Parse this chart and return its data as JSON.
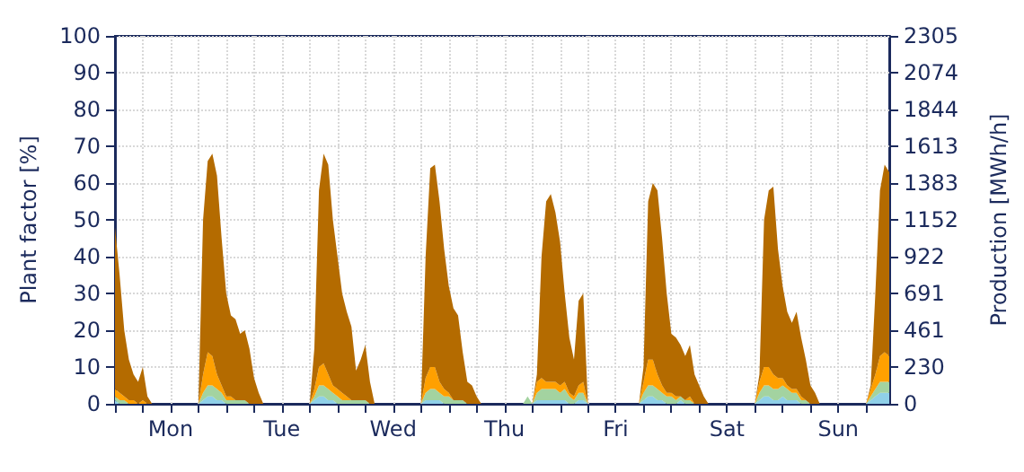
{
  "chart_data": {
    "type": "area",
    "stacked": true,
    "ylabel": "Plant factor [%]",
    "y2label": "Production [MWh/h]",
    "categories": [
      null,
      null,
      null,
      null,
      null,
      null,
      null,
      null,
      null,
      null,
      null,
      null,
      "Mon",
      null,
      null,
      null,
      null,
      null,
      null,
      null,
      null,
      null,
      null,
      null,
      null,
      null,
      null,
      null,
      null,
      null,
      null,
      null,
      null,
      null,
      null,
      null,
      "Tue",
      null,
      null,
      null,
      null,
      null,
      null,
      null,
      null,
      null,
      null,
      null,
      null,
      null,
      null,
      null,
      null,
      null,
      null,
      null,
      null,
      null,
      null,
      null,
      "Wed",
      null,
      null,
      null,
      null,
      null,
      null,
      null,
      null,
      null,
      null,
      null,
      null,
      null,
      null,
      null,
      null,
      null,
      null,
      null,
      null,
      null,
      null,
      null,
      "Thu",
      null,
      null,
      null,
      null,
      null,
      null,
      null,
      null,
      null,
      null,
      null,
      null,
      null,
      null,
      null,
      null,
      null,
      null,
      null,
      null,
      null,
      null,
      null,
      "Fri",
      null,
      null,
      null,
      null,
      null,
      null,
      null,
      null,
      null,
      null,
      null,
      null,
      null,
      null,
      null,
      null,
      null,
      null,
      null,
      null,
      null,
      null,
      null,
      "Sat",
      null,
      null,
      null,
      null,
      null,
      null,
      null,
      null,
      null,
      null,
      null,
      null,
      null,
      null,
      null,
      null,
      null,
      null,
      null,
      null,
      null,
      null,
      null,
      "Sun",
      null,
      null,
      null,
      null,
      null,
      null,
      null,
      null,
      null,
      null,
      null
    ],
    "ylim": [
      0,
      100
    ],
    "yticks": [
      0,
      10,
      20,
      30,
      40,
      50,
      60,
      70,
      80,
      90,
      100
    ],
    "y2lim": [
      0,
      2305
    ],
    "y2ticks": [
      0,
      230,
      461,
      691,
      922,
      1152,
      1383,
      1613,
      1844,
      2074,
      2305
    ],
    "grid": true,
    "series": [
      {
        "color": "#8fd0e8",
        "values": [
          1,
          0,
          0,
          0,
          0,
          0,
          0,
          0,
          0,
          0,
          0,
          0,
          0,
          0,
          0,
          0,
          0,
          0,
          0,
          1,
          2,
          2,
          1,
          1,
          0,
          0,
          0,
          0,
          0,
          0,
          0,
          0,
          0,
          0,
          0,
          0,
          0,
          0,
          0,
          0,
          0,
          0,
          0,
          1,
          2,
          2,
          1,
          1,
          0,
          0,
          0,
          0,
          0,
          0,
          0,
          0,
          0,
          0,
          0,
          0,
          0,
          0,
          0,
          0,
          0,
          0,
          0,
          1,
          1,
          1,
          1,
          0,
          0,
          0,
          0,
          0,
          0,
          0,
          0,
          0,
          0,
          0,
          0,
          0,
          0,
          0,
          0,
          0,
          0,
          0,
          0,
          1,
          1,
          1,
          1,
          1,
          1,
          1,
          0,
          0,
          1,
          1,
          0,
          0,
          0,
          0,
          0,
          0,
          0,
          0,
          0,
          0,
          0,
          0,
          1,
          2,
          2,
          1,
          1,
          0,
          0,
          0,
          1,
          0,
          0,
          0,
          0,
          0,
          0,
          0,
          0,
          0,
          0,
          0,
          0,
          0,
          0,
          0,
          0,
          1,
          2,
          2,
          1,
          1,
          2,
          1,
          1,
          1,
          0,
          0,
          0,
          0,
          0,
          0,
          0,
          0,
          0,
          0,
          0,
          0,
          0,
          0,
          0,
          1,
          2,
          3,
          3,
          3
        ]
      },
      {
        "color": "#a3d3a0",
        "values": [
          1,
          1,
          1,
          0,
          0,
          0,
          0,
          0,
          0,
          0,
          0,
          0,
          0,
          0,
          0,
          0,
          0,
          0,
          0,
          2,
          3,
          3,
          3,
          2,
          1,
          1,
          1,
          1,
          1,
          0,
          0,
          0,
          0,
          0,
          0,
          0,
          0,
          0,
          0,
          0,
          0,
          0,
          0,
          1,
          3,
          3,
          3,
          2,
          2,
          1,
          1,
          1,
          1,
          1,
          1,
          0,
          0,
          0,
          0,
          0,
          0,
          0,
          0,
          0,
          0,
          0,
          0,
          2,
          3,
          3,
          2,
          2,
          2,
          1,
          1,
          1,
          0,
          0,
          0,
          0,
          0,
          0,
          0,
          0,
          0,
          0,
          0,
          0,
          0,
          2,
          0,
          2,
          3,
          3,
          3,
          3,
          2,
          3,
          2,
          1,
          2,
          2,
          0,
          0,
          0,
          0,
          0,
          0,
          0,
          0,
          0,
          0,
          0,
          0,
          2,
          3,
          3,
          3,
          2,
          2,
          2,
          1,
          1,
          1,
          1,
          0,
          0,
          0,
          0,
          0,
          0,
          0,
          0,
          0,
          0,
          0,
          0,
          0,
          0,
          2,
          3,
          3,
          3,
          3,
          3,
          3,
          2,
          2,
          1,
          1,
          0,
          0,
          0,
          0,
          0,
          0,
          0,
          0,
          0,
          0,
          0,
          0,
          0,
          1,
          2,
          3,
          3,
          3
        ]
      },
      {
        "color": "#ffa000",
        "values": [
          2,
          2,
          1,
          1,
          1,
          0,
          1,
          0,
          0,
          0,
          0,
          0,
          0,
          0,
          0,
          0,
          0,
          0,
          0,
          5,
          9,
          8,
          4,
          2,
          1,
          1,
          0,
          0,
          0,
          0,
          0,
          0,
          0,
          0,
          0,
          0,
          0,
          0,
          0,
          0,
          0,
          0,
          0,
          2,
          5,
          6,
          4,
          2,
          2,
          2,
          1,
          0,
          0,
          0,
          0,
          0,
          0,
          0,
          0,
          0,
          0,
          0,
          0,
          0,
          0,
          0,
          0,
          4,
          6,
          6,
          3,
          2,
          1,
          0,
          0,
          0,
          0,
          0,
          0,
          0,
          0,
          0,
          0,
          0,
          0,
          0,
          0,
          0,
          0,
          0,
          0,
          3,
          3,
          2,
          2,
          2,
          2,
          2,
          1,
          1,
          2,
          3,
          0,
          0,
          0,
          0,
          0,
          0,
          0,
          0,
          0,
          0,
          0,
          0,
          3,
          7,
          7,
          4,
          2,
          1,
          1,
          1,
          0,
          0,
          1,
          0,
          0,
          0,
          0,
          0,
          0,
          0,
          0,
          0,
          0,
          0,
          0,
          0,
          0,
          3,
          5,
          5,
          4,
          3,
          2,
          1,
          1,
          1,
          1,
          0,
          0,
          0,
          0,
          0,
          0,
          0,
          0,
          0,
          0,
          0,
          0,
          0,
          0,
          2,
          4,
          7,
          8,
          7
        ]
      },
      {
        "color": "#b46b00",
        "values": [
          44,
          32,
          18,
          11,
          7,
          6,
          9,
          2,
          0,
          0,
          0,
          0,
          0,
          0,
          0,
          0,
          0,
          0,
          0,
          42,
          52,
          55,
          54,
          40,
          28,
          22,
          22,
          18,
          19,
          15,
          7,
          3,
          0,
          0,
          0,
          0,
          0,
          0,
          0,
          0,
          0,
          0,
          0,
          11,
          48,
          57,
          57,
          45,
          36,
          27,
          23,
          20,
          8,
          11,
          15,
          6,
          0,
          0,
          0,
          0,
          0,
          0,
          0,
          0,
          0,
          0,
          0,
          33,
          54,
          55,
          49,
          38,
          29,
          25,
          23,
          13,
          6,
          5,
          2,
          0,
          0,
          0,
          0,
          0,
          0,
          0,
          0,
          0,
          0,
          0,
          0,
          2,
          33,
          49,
          51,
          46,
          39,
          24,
          15,
          10,
          23,
          24,
          0,
          0,
          0,
          0,
          0,
          0,
          0,
          0,
          0,
          0,
          0,
          0,
          4,
          43,
          48,
          50,
          40,
          27,
          16,
          16,
          14,
          12,
          14,
          8,
          5,
          2,
          0,
          0,
          0,
          0,
          0,
          0,
          0,
          0,
          0,
          0,
          0,
          2,
          40,
          48,
          51,
          35,
          25,
          20,
          18,
          21,
          16,
          11,
          5,
          3,
          0,
          0,
          0,
          0,
          0,
          0,
          0,
          0,
          0,
          0,
          0,
          1,
          22,
          45,
          51,
          50
        ]
      }
    ]
  }
}
